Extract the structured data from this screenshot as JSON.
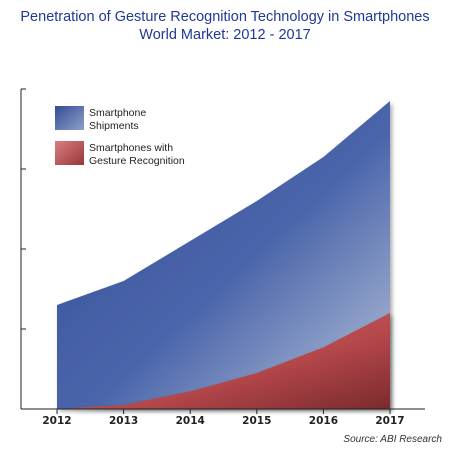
{
  "chart_data": {
    "type": "area",
    "title": "Penetration of Gesture Recognition Technology in Smartphones",
    "subtitle": "World Market: 2012 - 2017",
    "categories": [
      "2012",
      "2013",
      "2014",
      "2015",
      "2016",
      "2017"
    ],
    "series": [
      {
        "name": "Smartphone Shipments",
        "values": [
          1.3,
          1.6,
          2.1,
          2.6,
          3.15,
          3.85
        ],
        "color": "#3f59a3"
      },
      {
        "name": "Smartphones with Gesture Recognition",
        "values": [
          0.0,
          0.05,
          0.22,
          0.45,
          0.77,
          1.2
        ],
        "color": "#b0464a"
      }
    ],
    "ylim": [
      0,
      4
    ],
    "xlabel": "",
    "ylabel": "",
    "legend_position": "top-left",
    "grid": false,
    "source": "Source: ABI Research"
  }
}
